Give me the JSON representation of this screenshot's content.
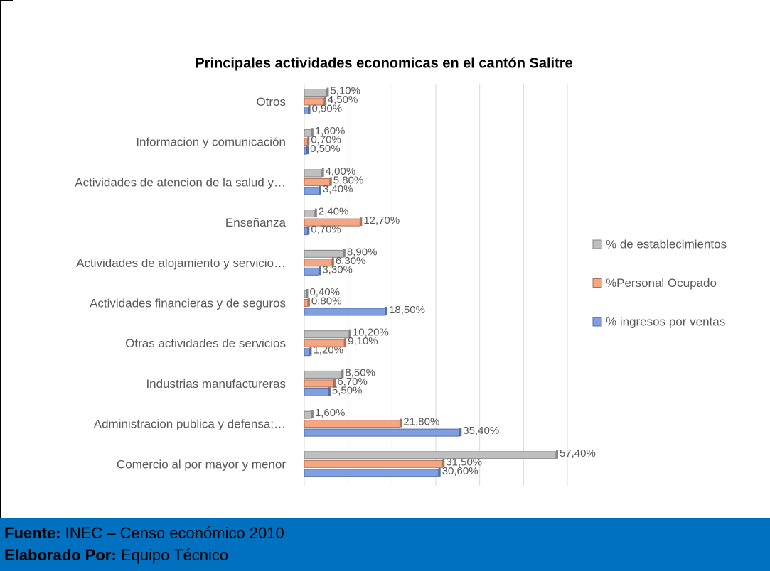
{
  "chart_data": {
    "type": "bar",
    "orientation": "horizontal",
    "title": "Principales actividades economicas en el cantón Salitre",
    "categories": [
      "Otros",
      "Informacion y comunicación",
      "Actividades de atencion de la salud y…",
      "Enseñanza",
      "Actividades de alojamiento y servicio…",
      "Actividades financieras y de seguros",
      "Otras actividades de servicios",
      "Industrias manufactureras",
      "Administracion publica y defensa;…",
      "Comercio al por mayor y menor"
    ],
    "series": [
      {
        "name": "% de establecimientos",
        "color": "#bfbfbf",
        "values": [
          5.1,
          1.6,
          4.0,
          2.4,
          8.9,
          0.4,
          10.2,
          8.5,
          1.6,
          57.4
        ],
        "value_labels": [
          "5,10%",
          "1,60%",
          "4,00%",
          "2,40%",
          "8,90%",
          "0,40%",
          "10,20%",
          "8,50%",
          "1,60%",
          "57,40%"
        ]
      },
      {
        "name": "%Personal Ocupado",
        "color": "#f4a582",
        "values": [
          4.5,
          0.7,
          5.8,
          12.7,
          6.3,
          0.8,
          9.1,
          6.7,
          21.8,
          31.5
        ],
        "value_labels": [
          "4,50%",
          "0,70%",
          "5,80%",
          "12,70%",
          "6,30%",
          "0,80%",
          "9,10%",
          "6,70%",
          "21,80%",
          "31,50%"
        ]
      },
      {
        "name": "% ingresos por ventas",
        "color": "#7f9fe0",
        "values": [
          0.9,
          0.5,
          3.4,
          0.7,
          3.3,
          18.5,
          1.2,
          5.5,
          35.4,
          30.6
        ],
        "value_labels": [
          "0,90%",
          "0,50%",
          "3,40%",
          "0,70%",
          "3,30%",
          "18,50%",
          "1,20%",
          "5,50%",
          "35,40%",
          "30,60%"
        ]
      }
    ],
    "xlim": [
      0,
      60
    ],
    "xticks": [
      0,
      10,
      20,
      30,
      40,
      50,
      60
    ],
    "grid": true,
    "legend": "right"
  },
  "footer": {
    "source_label": "Fuente:",
    "source": "INEC – Censo económico 2010",
    "author_label": "Elaborado Por:",
    "author": "Equipo Técnico"
  }
}
